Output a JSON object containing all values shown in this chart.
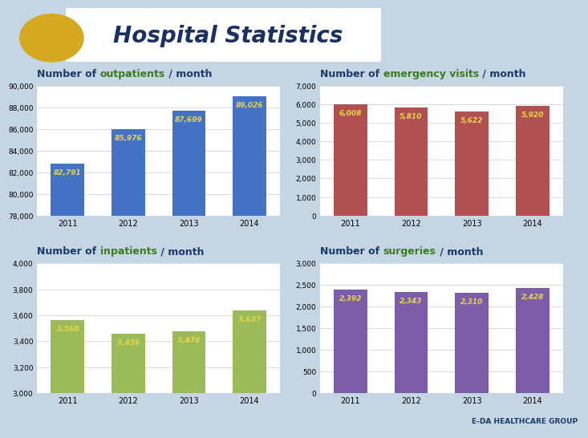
{
  "title": "Hospital Statistics",
  "background_color": "#c5d5e4",
  "header_bg": "#b8ccd8",
  "outpatients": {
    "title_parts": [
      [
        "Number of ",
        "#1a3a6a"
      ],
      [
        "outpatients",
        "#3a7a20"
      ],
      [
        " / month",
        "#1a3a6a"
      ]
    ],
    "years": [
      "2011",
      "2012",
      "2013",
      "2014"
    ],
    "values": [
      82791,
      85976,
      87699,
      89026
    ],
    "bar_color": "#4472c4",
    "label_color": "#e8d44d",
    "ylim": [
      78000,
      90000
    ],
    "yticks": [
      78000,
      80000,
      82000,
      84000,
      86000,
      88000,
      90000
    ]
  },
  "emergency": {
    "title_parts": [
      [
        "Number of ",
        "#1a3a6a"
      ],
      [
        "emergency visits",
        "#3a7a20"
      ],
      [
        " / month",
        "#1a3a6a"
      ]
    ],
    "years": [
      "2011",
      "2012",
      "2013",
      "2014"
    ],
    "values": [
      6008,
      5810,
      5622,
      5920
    ],
    "bar_color": "#b05050",
    "label_color": "#e8d44d",
    "ylim": [
      0,
      7000
    ],
    "yticks": [
      0,
      1000,
      2000,
      3000,
      4000,
      5000,
      6000,
      7000
    ]
  },
  "inpatients": {
    "title_parts": [
      [
        "Number of ",
        "#1a3a6a"
      ],
      [
        "inpatients",
        "#3a7a20"
      ],
      [
        " / month",
        "#1a3a6a"
      ]
    ],
    "years": [
      "2011",
      "2012",
      "2013",
      "2014"
    ],
    "values": [
      3560,
      3456,
      3478,
      3637
    ],
    "bar_color": "#9bbb59",
    "label_color": "#e8d44d",
    "ylim": [
      3000,
      4000
    ],
    "yticks": [
      3000,
      3200,
      3400,
      3600,
      3800,
      4000
    ]
  },
  "surgeries": {
    "title_parts": [
      [
        "Number of ",
        "#1a3a6a"
      ],
      [
        "surgeries",
        "#3a7a20"
      ],
      [
        " / month",
        "#1a3a6a"
      ]
    ],
    "years": [
      "2011",
      "2012",
      "2013",
      "2014"
    ],
    "values": [
      2392,
      2343,
      2310,
      2428
    ],
    "bar_color": "#7b5ea7",
    "label_color": "#e8d44d",
    "ylim": [
      0,
      3000
    ],
    "yticks": [
      0,
      500,
      1000,
      1500,
      2000,
      2500,
      3000
    ]
  }
}
